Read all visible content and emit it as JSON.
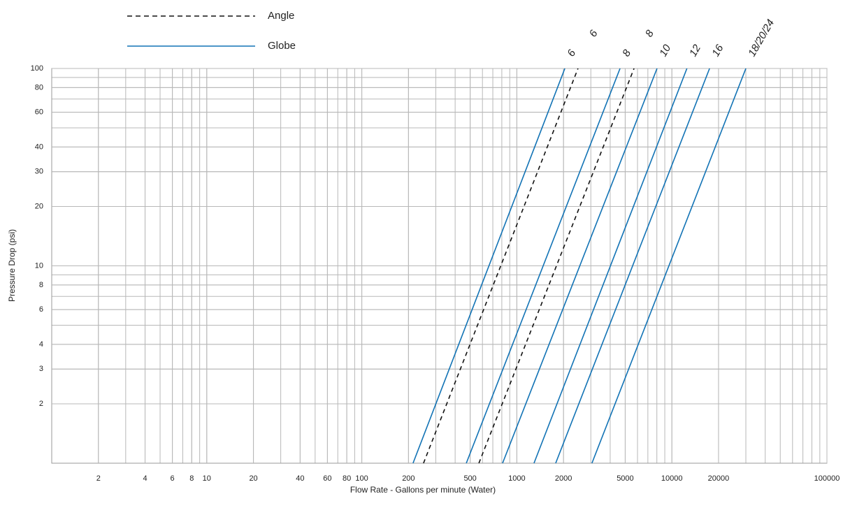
{
  "chart_data": {
    "type": "line",
    "x_label": "Flow Rate - Gallons per minute (Water)",
    "y_label": "Pressure Drop (psi)",
    "x_log": true,
    "y_log": true,
    "minor_grid": true,
    "xlim": [
      1,
      100000
    ],
    "ylim": [
      1,
      100
    ],
    "xticks": [
      2,
      4,
      6,
      8,
      10,
      20,
      40,
      60,
      80,
      100,
      200,
      500,
      1000,
      2000,
      5000,
      10000,
      20000,
      100000
    ],
    "yticks": [
      2,
      3,
      4,
      6,
      8,
      10,
      20,
      30,
      40,
      60,
      80,
      100
    ],
    "legend": [
      {
        "label": "Angle",
        "color": "#111111",
        "dashed": true
      },
      {
        "label": "Globe",
        "color": "#1273b5",
        "dashed": false
      }
    ],
    "series": [
      {
        "name": "6",
        "color": "#111111",
        "dashed": true,
        "x": [
          250,
          2480
        ],
        "values": [
          1,
          100
        ]
      },
      {
        "name": "8",
        "color": "#111111",
        "dashed": true,
        "x": [
          569,
          5700
        ],
        "values": [
          1,
          100
        ]
      },
      {
        "name": "6",
        "color": "#1273b5",
        "dashed": false,
        "x": [
          214,
          2040
        ],
        "values": [
          1,
          100
        ]
      },
      {
        "name": "8",
        "color": "#1273b5",
        "dashed": false,
        "x": [
          472,
          4630
        ],
        "values": [
          1,
          100
        ]
      },
      {
        "name": "10",
        "color": "#1273b5",
        "dashed": false,
        "x": [
          809,
          8020
        ],
        "values": [
          1,
          100
        ]
      },
      {
        "name": "12",
        "color": "#1273b5",
        "dashed": false,
        "x": [
          1290,
          12500
        ],
        "values": [
          1,
          100
        ]
      },
      {
        "name": "16",
        "color": "#1273b5",
        "dashed": false,
        "x": [
          1780,
          17500
        ],
        "values": [
          1,
          100
        ]
      },
      {
        "name": "18/20/24",
        "color": "#1273b5",
        "dashed": false,
        "x": [
          3050,
          30000
        ],
        "values": [
          1,
          100
        ]
      }
    ]
  }
}
